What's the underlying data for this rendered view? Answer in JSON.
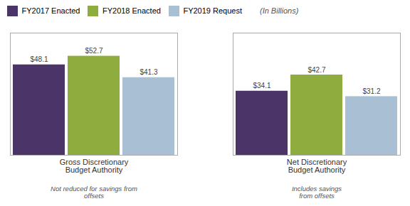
{
  "chart_data": {
    "type": "bar",
    "subtitle": "(In Billions)",
    "categories": [
      "Gross Discretionary\nBudget Authority",
      "Net Discretionary\nBudget Authority"
    ],
    "category_subtitles": [
      "Not reduced for savings from\noffsets",
      "Includes savings\nfrom offsets"
    ],
    "series": [
      {
        "name": "FY2017 Enacted",
        "color": "#4b3468",
        "values": [
          48.1,
          34.1
        ],
        "value_labels": [
          "$48.1",
          "$34.1"
        ]
      },
      {
        "name": "FY2018 Enacted",
        "color": "#8fad3f",
        "values": [
          52.7,
          42.7
        ],
        "value_labels": [
          "$52.7",
          "$42.7"
        ]
      },
      {
        "name": "FY2019 Request",
        "color": "#a8bfd4",
        "values": [
          41.3,
          31.2
        ],
        "value_labels": [
          "$41.3",
          "$31.2"
        ]
      }
    ],
    "ylim": [
      0,
      65
    ],
    "grid": false,
    "legend": "upper left",
    "data_labels": true,
    "tick_labels": "x"
  }
}
